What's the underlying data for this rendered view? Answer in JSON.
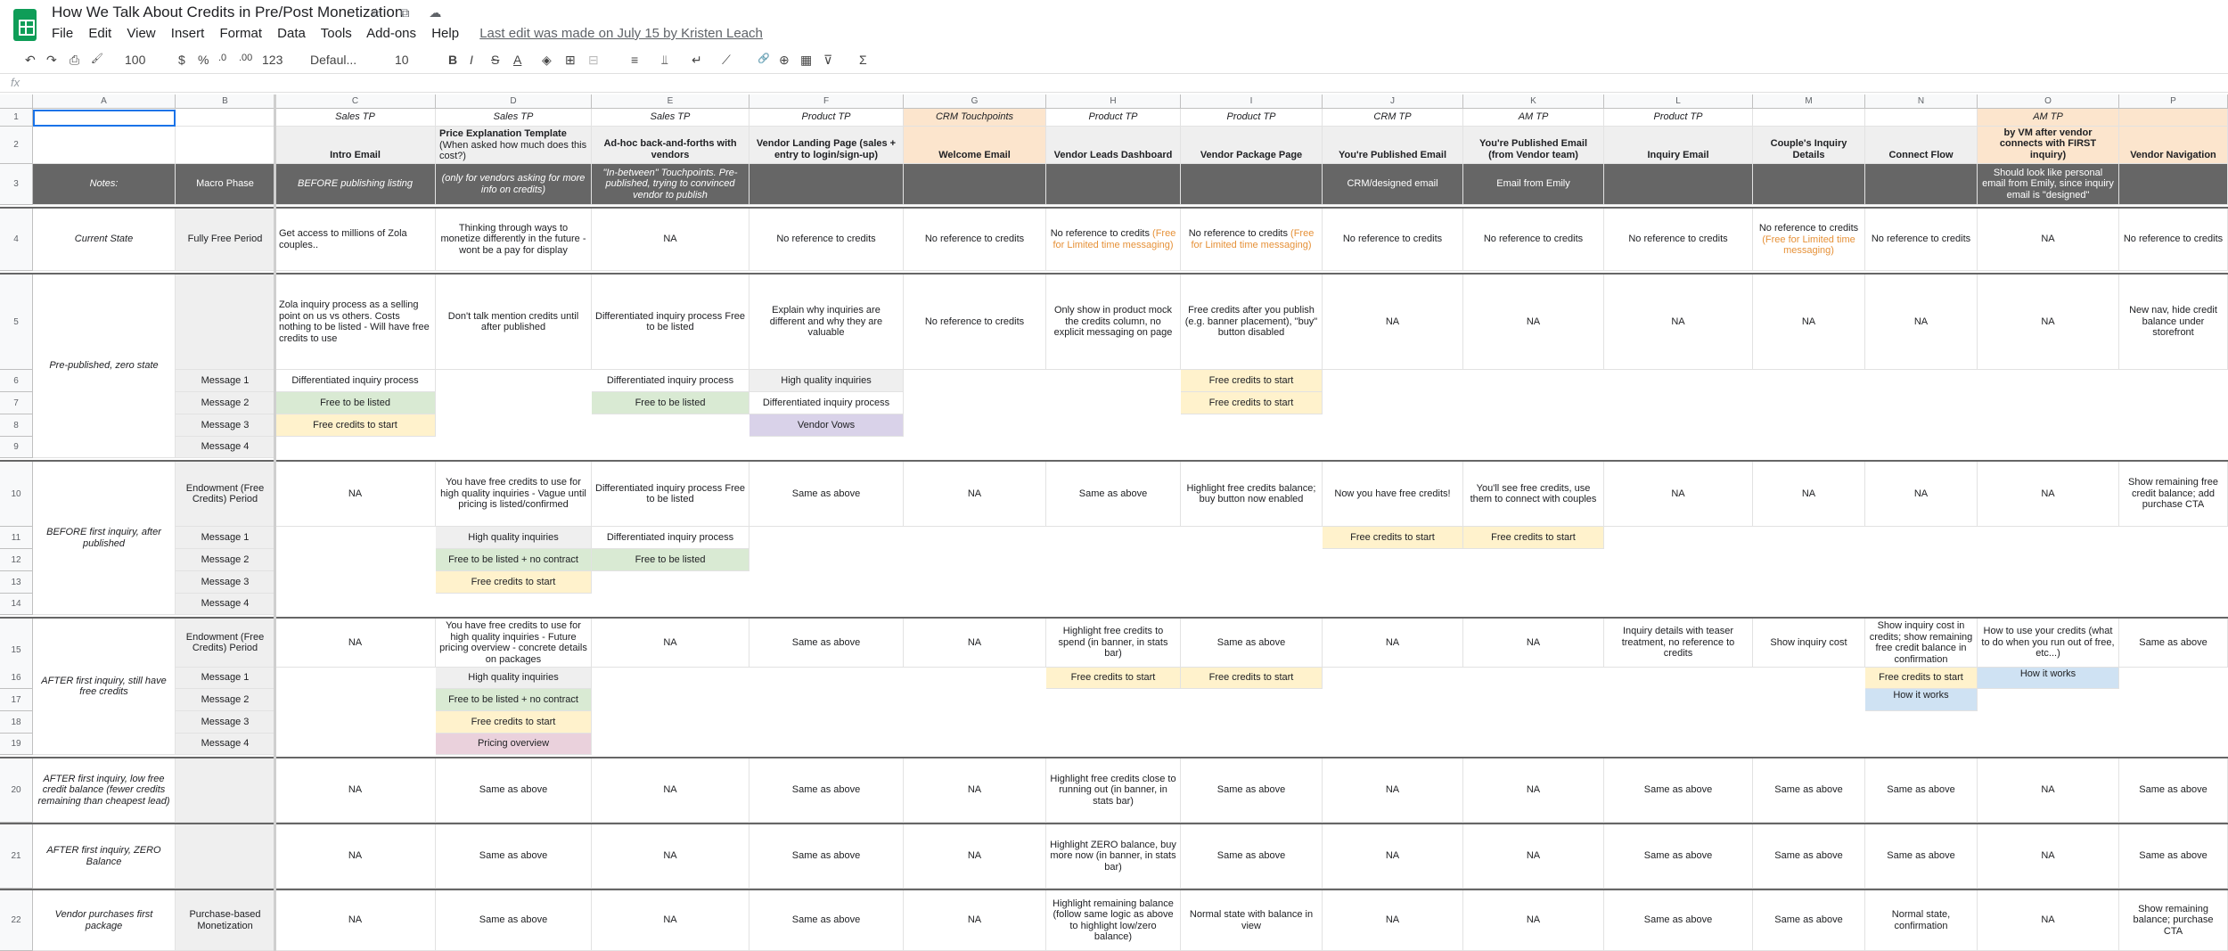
{
  "app": {
    "title": "How We Talk About Credits in Pre/Post Monetization",
    "menus": [
      "File",
      "Edit",
      "View",
      "Insert",
      "Format",
      "Data",
      "Tools",
      "Add-ons",
      "Help"
    ],
    "last_edit": "Last edit was made on July 15 by Kristen Leach",
    "title_icons": "☆ ⧉ ☁"
  },
  "toolbar": {
    "undo": "↶",
    "redo": "↷",
    "print": "⎙",
    "paint": "🖌",
    "zoom": "100",
    "currency": "$",
    "percent": "%",
    "dec_less": ".0",
    "dec_more": ".00",
    "format": "123",
    "font": "Defaul...",
    "size": "10",
    "bold": "B",
    "italic": "I",
    "strike": "S",
    "textcolor": "A",
    "fill": "◈",
    "borders": "⊞",
    "merge": "⊟",
    "halign": "≡",
    "valign": "⫫",
    "wrap": "↵",
    "rotate": "⟋",
    "link": "🔗",
    "comment": "⊕",
    "chart": "▦",
    "filter": "⊽",
    "functions": "Σ"
  },
  "formula_bar": {
    "fx": "fx",
    "value": ""
  },
  "columns": [
    "A",
    "B",
    "C",
    "D",
    "E",
    "F",
    "G",
    "H",
    "I",
    "J",
    "K",
    "L",
    "M",
    "N",
    "O",
    "P"
  ],
  "rows": [
    "1",
    "2",
    "3",
    "4",
    "5",
    "6",
    "7",
    "8",
    "9",
    "10",
    "11",
    "12",
    "13",
    "14",
    "15",
    "16",
    "17",
    "18",
    "19",
    "20",
    "21",
    "22"
  ],
  "colors": {
    "peach": "#fce5cd",
    "green": "#d9ead3",
    "yellow": "#fff2cc",
    "purple": "#d9d2e9",
    "blue": "#cfe2f3",
    "pink": "#ead1dc",
    "grey": "#efefef",
    "dark": "#666666",
    "orange_text": "#e69138",
    "selection": "#1a73e8"
  },
  "sheet": {
    "r1": {
      "C": "Sales TP",
      "D": "Sales TP",
      "E": "Sales TP",
      "F": "Product TP",
      "G": "CRM Touchpoints",
      "H": "Product TP",
      "I": "Product TP",
      "J": "CRM TP",
      "K": "AM TP",
      "L": "Product TP",
      "O": "AM TP"
    },
    "r2": {
      "C": "Intro Email",
      "D": "Price Explanation Template",
      "D_sub": "(When asked how much does this cost?)",
      "E": "Ad-hoc back-and-forths with vendors",
      "F": "Vendor Landing Page (sales + entry to login/sign-up)",
      "G": "Welcome Email",
      "H": "Vendor Leads Dashboard",
      "I": "Vendor Package Page",
      "J": "You're Published Email",
      "K": "You're Published Email (from Vendor team)",
      "L": "Inquiry Email",
      "M": "Couple's Inquiry Details",
      "N": "Connect Flow",
      "O": "\"How-to\" Credit Email (sent by VM after vendor connects with FIRST inquiry)",
      "P": "Vendor Navigation"
    },
    "r3": {
      "A": "Notes:",
      "B": "Macro Phase",
      "C": "BEFORE publishing listing",
      "D": "(only for vendors asking for more info on credits)",
      "E": "\"In-between\" Touchpoints. Pre-published, trying to convinced vendor to publish",
      "J": "CRM/designed email",
      "K": "Email from Emily",
      "O": "Should look like personal email from Emily, since inquiry email is \"designed\""
    },
    "r4": {
      "A": "Current State",
      "B": "Fully Free Period",
      "C": "Get access to millions of Zola couples..",
      "D": "Thinking through ways to monetize differently in the future - wont be a pay for display",
      "E": "NA",
      "F": "No reference to credits",
      "G": "No reference to credits",
      "H": "No reference to credits",
      "H_o": "(Free for Limited time messaging)",
      "I": "No reference to credits",
      "I_o": "(Free for Limited time messaging)",
      "J": "No reference to credits",
      "K": "No reference to credits",
      "L": "No reference to credits",
      "M": "No reference to credits",
      "M_o": "(Free for Limited time messaging)",
      "N": "No reference to credits",
      "O": "NA",
      "P": "No reference to credits"
    },
    "r5": {
      "A": "Pre-published, zero state",
      "C": "Zola inquiry process as a selling point on us vs others. Costs nothing to be listed - Will have free credits to use",
      "D": "Don't talk mention credits until after published",
      "E": "Differentiated inquiry process Free to be listed",
      "F": "Explain why inquiries are different and why they are valuable",
      "G": "No reference to credits",
      "H": "Only show in product mock the credits column, no explicit messaging on page",
      "I": "Free credits after you publish (e.g. banner placement), \"buy\" button disabled",
      "J": "NA",
      "K": "NA",
      "L": "NA",
      "M": "NA",
      "N": "NA",
      "O": "NA",
      "P": "New nav, hide credit balance under storefront"
    },
    "r6": {
      "B": "Message 1",
      "C": "Differentiated inquiry process",
      "E": "Differentiated inquiry process",
      "F": "High quality inquiries",
      "I": "Free credits to start"
    },
    "r7": {
      "B": "Message 2",
      "C": "Free to be listed",
      "E": "Free to be listed",
      "F": "Differentiated inquiry process",
      "I": "Free credits to start"
    },
    "r8": {
      "B": "Message 3",
      "C": "Free credits to start",
      "F": "Vendor Vows"
    },
    "r9": {
      "B": "Message 4"
    },
    "r10": {
      "A": "BEFORE first inquiry, after published",
      "B": "Endowment (Free Credits) Period",
      "C": "NA",
      "D": "You have free credits to use for high quality inquiries - Vague until pricing is listed/confirmed",
      "E": "Differentiated inquiry process Free to be listed",
      "F": "Same as above",
      "G": "NA",
      "H": "Same as above",
      "I": "Highlight free credits balance; buy button now enabled",
      "J": "Now you have free credits!",
      "K": "You'll see free credits, use them to connect with couples",
      "L": "NA",
      "M": "NA",
      "N": "NA",
      "O": "NA",
      "P": "Show remaining free credit balance; add purchase CTA"
    },
    "r11": {
      "B": "Message 1",
      "D": "High quality inquiries",
      "E": "Differentiated inquiry process",
      "J": "Free credits to start",
      "K": "Free credits to start"
    },
    "r12": {
      "B": "Message 2",
      "D": "Free to be listed + no contract",
      "E": "Free to be listed"
    },
    "r13": {
      "B": "Message 3",
      "D": "Free credits to start"
    },
    "r14": {
      "B": "Message 4"
    },
    "r15": {
      "A": "AFTER first inquiry, still have free credits",
      "B": "Endowment (Free Credits) Period",
      "C": "NA",
      "D": "You have free credits to use for high quality inquiries - Future pricing overview - concrete details on packages",
      "E": "NA",
      "F": "Same as above",
      "G": "NA",
      "H": "Highlight free credits to spend (in banner, in stats bar)",
      "I": "Same as above",
      "J": "NA",
      "K": "NA",
      "L": "Inquiry details with teaser treatment, no reference to credits",
      "M": "Show inquiry cost",
      "N": "Show inquiry cost in credits; show remaining free credit balance in confirmation",
      "O": "How to use your credits (what to do when you run out of free, etc...)",
      "P": "Same as above"
    },
    "r16": {
      "B": "Message 1",
      "D": "High quality inquiries",
      "H": "Free credits to start",
      "I": "Free credits to start",
      "N": "Free credits to start",
      "O": "How it works"
    },
    "r17": {
      "B": "Message 2",
      "D": "Free to be listed + no contract",
      "N": "How it works"
    },
    "r18": {
      "B": "Message 3",
      "D": "Free credits to start"
    },
    "r19": {
      "B": "Message 4",
      "D": "Pricing overview"
    },
    "r20": {
      "A": "AFTER first inquiry, low free credit balance (fewer credits remaining than cheapest lead)",
      "C": "NA",
      "D": "Same as above",
      "E": "NA",
      "F": "Same as above",
      "G": "NA",
      "H": "Highlight free credits close to running out (in banner, in stats bar)",
      "I": "Same as above",
      "J": "NA",
      "K": "NA",
      "L": "Same as above",
      "M": "Same as above",
      "N": "Same as above",
      "O": "NA",
      "P": "Same as above"
    },
    "r21": {
      "A": "AFTER first inquiry, ZERO Balance",
      "C": "NA",
      "D": "Same as above",
      "E": "NA",
      "F": "Same as above",
      "G": "NA",
      "H": "Highlight ZERO balance, buy more now (in banner, in stats bar)",
      "I": "Same as above",
      "J": "NA",
      "K": "NA",
      "L": "Same as above",
      "M": "Same as above",
      "N": "Same as above",
      "O": "NA",
      "P": "Same as above"
    },
    "r22": {
      "A": "Vendor purchases first package",
      "B": "Purchase-based Monetization",
      "C": "NA",
      "D": "Same as above",
      "E": "NA",
      "F": "Same as above",
      "G": "NA",
      "H": "Highlight remaining balance (follow same logic as above to highlight low/zero balance)",
      "I": "Normal state with balance in view",
      "J": "NA",
      "K": "NA",
      "L": "Same as above",
      "M": "Same as above",
      "N": "Normal state, confirmation",
      "O": "NA",
      "P": "Show remaining balance; purchase CTA"
    }
  }
}
